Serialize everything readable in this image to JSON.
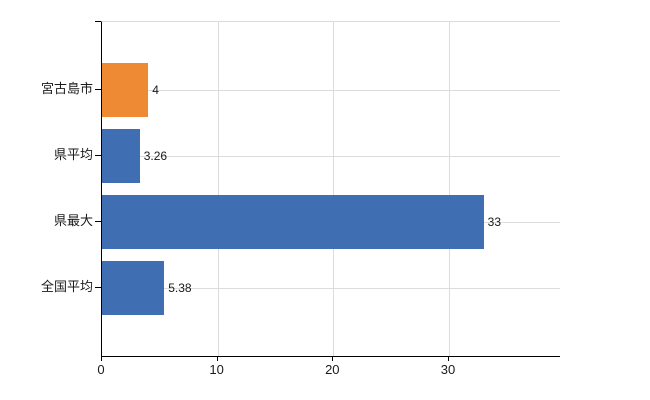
{
  "chart_data": {
    "type": "bar",
    "orientation": "horizontal",
    "title": "",
    "xlabel": "",
    "ylabel": "",
    "categories": [
      "宮古島市",
      "県平均",
      "県最大",
      "全国平均"
    ],
    "values": [
      4,
      3.26,
      33,
      5.38
    ],
    "value_labels": [
      "4",
      "3.26",
      "33",
      "5.38"
    ],
    "bar_colors": [
      "#ed8a33",
      "#3f6eb2",
      "#3f6eb2",
      "#3f6eb2"
    ],
    "x_tick_labels": [
      "0",
      "10",
      "20",
      "30"
    ],
    "x_tick_values": [
      0,
      10,
      20,
      30
    ],
    "xlim": [
      0,
      39.6
    ],
    "grid": true,
    "legend": false,
    "colors": {
      "background": "#ffffff",
      "axis": "#000000",
      "gridline": "#dcdcdc",
      "text": "#1a1a1a"
    }
  }
}
